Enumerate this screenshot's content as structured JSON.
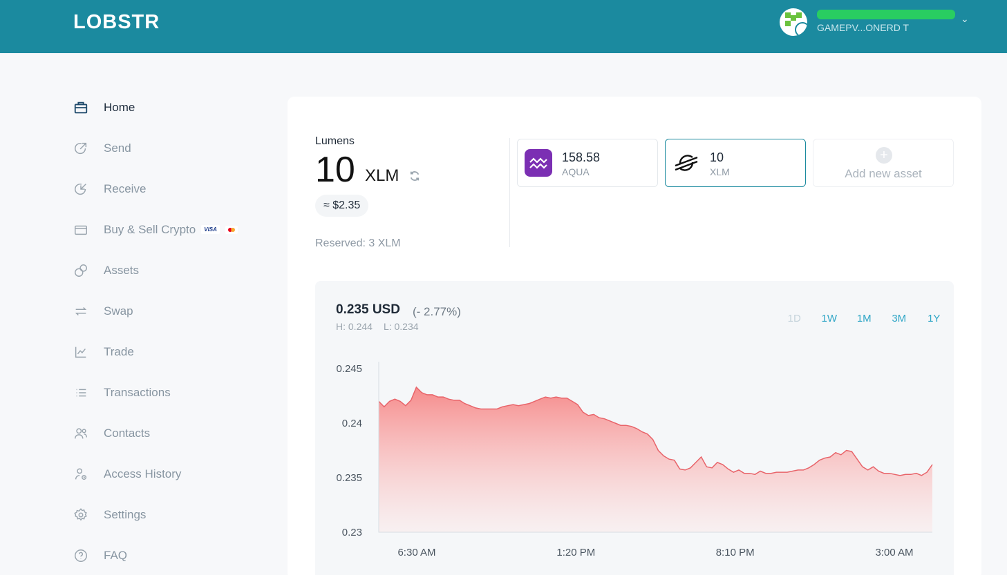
{
  "header": {
    "logo": "LOBSTR",
    "account_name": "GAMEPV...ONERD T"
  },
  "nav": {
    "items": [
      {
        "label": "Home",
        "icon": "briefcase-icon",
        "active": true
      },
      {
        "label": "Send",
        "icon": "send-arrow-icon"
      },
      {
        "label": "Receive",
        "icon": "receive-arrow-icon"
      },
      {
        "label": "Buy & Sell Crypto",
        "icon": "card-icon"
      },
      {
        "label": "Assets",
        "icon": "coins-icon"
      },
      {
        "label": "Swap",
        "icon": "swap-icon"
      },
      {
        "label": "Trade",
        "icon": "chart-line-icon"
      },
      {
        "label": "Transactions",
        "icon": "list-icon"
      },
      {
        "label": "Contacts",
        "icon": "contacts-icon"
      },
      {
        "label": "Access History",
        "icon": "access-history-icon"
      },
      {
        "label": "Settings",
        "icon": "gear-icon"
      },
      {
        "label": "FAQ",
        "icon": "help-icon"
      }
    ],
    "visa_label": "VISA"
  },
  "balance": {
    "label": "Lumens",
    "amount": "10",
    "unit": "XLM",
    "usd": "≈ $2.35",
    "reserved": "Reserved: 3 XLM"
  },
  "assets": [
    {
      "value": "158.58",
      "code": "AQUA",
      "color": "#7b2fb3"
    },
    {
      "value": "10",
      "code": "XLM",
      "selected": true
    }
  ],
  "add_asset_label": "Add new asset",
  "price": {
    "value": "0.235 USD",
    "change": "(- 2.77%)",
    "high": "H: 0.244",
    "low": "L: 0.234"
  },
  "ranges": [
    {
      "label": "1D",
      "disabled": true
    },
    {
      "label": "1W"
    },
    {
      "label": "1M"
    },
    {
      "label": "3M"
    },
    {
      "label": "1Y"
    }
  ],
  "chart_data": {
    "type": "area",
    "ylim": [
      0.23,
      0.245
    ],
    "yticks": [
      "0.245",
      "0.24",
      "0.235",
      "0.23"
    ],
    "xticks": [
      "6:30 AM",
      "1:20 PM",
      "8:10 PM",
      "3:00 AM"
    ],
    "colors": {
      "line": "#e8646a",
      "fill_top": "#f68b8b",
      "fill_bottom": "#fbe9e9"
    },
    "values": [
      0.242,
      0.2415,
      0.242,
      0.2422,
      0.242,
      0.2416,
      0.2421,
      0.2433,
      0.2428,
      0.2426,
      0.2426,
      0.2424,
      0.2424,
      0.2422,
      0.2421,
      0.2421,
      0.2418,
      0.2416,
      0.2414,
      0.2413,
      0.2413,
      0.2413,
      0.2413,
      0.2415,
      0.2416,
      0.2417,
      0.2416,
      0.2417,
      0.2418,
      0.242,
      0.2422,
      0.2424,
      0.2423,
      0.2424,
      0.2423,
      0.2423,
      0.242,
      0.2417,
      0.241,
      0.2407,
      0.2408,
      0.2405,
      0.2404,
      0.2402,
      0.24,
      0.2398,
      0.2398,
      0.2397,
      0.2395,
      0.2392,
      0.239,
      0.2385,
      0.2375,
      0.237,
      0.2367,
      0.2366,
      0.2358,
      0.2357,
      0.2359,
      0.2364,
      0.2369,
      0.236,
      0.2359,
      0.2364,
      0.2362,
      0.2358,
      0.2355,
      0.2357,
      0.2354,
      0.2354,
      0.2353,
      0.2356,
      0.2354,
      0.2354,
      0.2355,
      0.2355,
      0.2355,
      0.2356,
      0.2357,
      0.2357,
      0.2359,
      0.2362,
      0.2366,
      0.2368,
      0.2369,
      0.2373,
      0.2371,
      0.2375,
      0.2374,
      0.2367,
      0.236,
      0.2357,
      0.236,
      0.2356,
      0.2354,
      0.2354,
      0.2353,
      0.2352,
      0.2353,
      0.2353,
      0.2354,
      0.2352,
      0.2355,
      0.2362
    ]
  }
}
